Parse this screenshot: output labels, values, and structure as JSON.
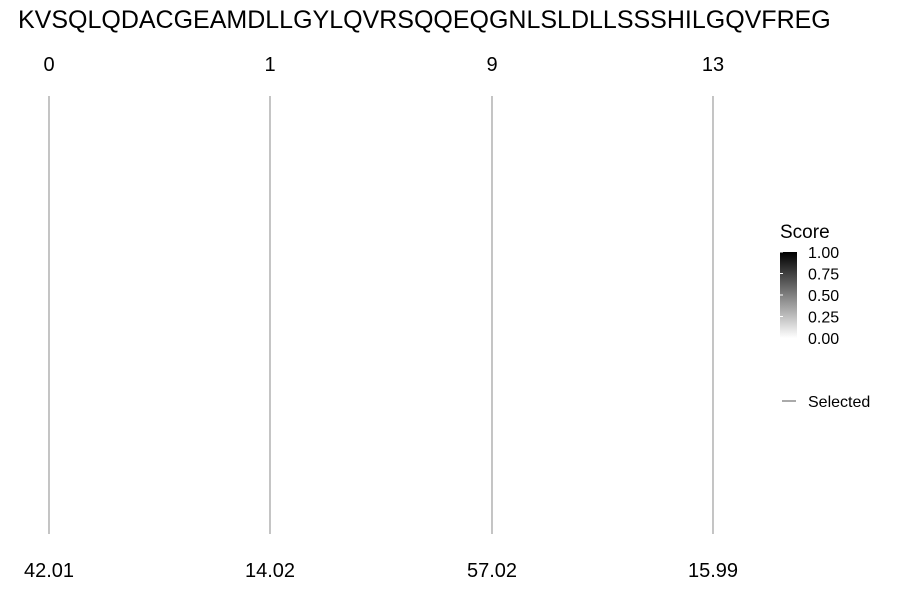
{
  "chart_data": {
    "type": "sequence-peak-plot",
    "title": "KVSQLQDACGEAMDLLGYLQVRSQQEQGNLSLDLLSSSHILGQVFREG",
    "peaks": [
      {
        "position": "0",
        "value": "42.01"
      },
      {
        "position": "1",
        "value": "14.02"
      },
      {
        "position": "9",
        "value": "57.02"
      },
      {
        "position": "13",
        "value": "15.99"
      }
    ],
    "legend": {
      "score_title": "Score",
      "score_ticks": [
        "1.00",
        "0.75",
        "0.50",
        "0.25",
        "0.00"
      ],
      "score_range": [
        0,
        1
      ],
      "selected_label": "Selected"
    },
    "colors": {
      "line": "#9e9e9e",
      "gradient_high": "#000000",
      "gradient_low": "#ffffff"
    }
  }
}
